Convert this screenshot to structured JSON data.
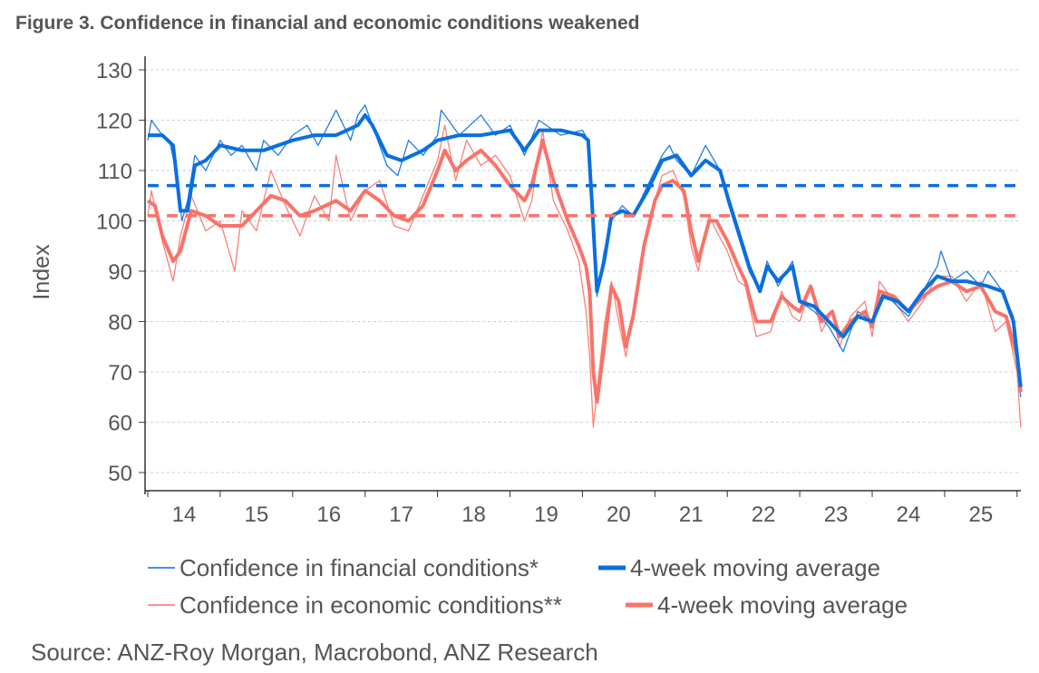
{
  "title": "Figure 3. Confidence in financial and economic conditions weakened",
  "source": "Source: ANZ-Roy Morgan, Macrobond, ANZ Research",
  "colors": {
    "financial": "#0a6fe0",
    "economic": "#f87369"
  },
  "chart_data": {
    "type": "line",
    "title": "Figure 3. Confidence in financial and economic conditions weakened",
    "xlabel": "",
    "ylabel": "Index",
    "ylim": [
      50,
      130
    ],
    "yticks": [
      50,
      60,
      70,
      80,
      90,
      100,
      110,
      120,
      130
    ],
    "xlim": [
      2014.0,
      2026.1
    ],
    "xtick_labels": [
      "14",
      "15",
      "16",
      "17",
      "18",
      "19",
      "20",
      "21",
      "22",
      "23",
      "24",
      "25"
    ],
    "grid": true,
    "legend_placement": "bottom",
    "series": [
      {
        "name": "Confidence in financial conditions*",
        "style": "thin",
        "color": "#0a6fe0",
        "x": [
          2014.0,
          2014.05,
          2014.2,
          2014.3,
          2014.4,
          2014.47,
          2014.55,
          2014.65,
          2014.8,
          2015.0,
          2015.15,
          2015.3,
          2015.5,
          2015.6,
          2015.8,
          2016.0,
          2016.2,
          2016.35,
          2016.6,
          2016.8,
          2016.9,
          2017.0,
          2017.1,
          2017.3,
          2017.45,
          2017.6,
          2017.8,
          2018.0,
          2018.05,
          2018.3,
          2018.6,
          2018.8,
          2019.0,
          2019.2,
          2019.4,
          2019.7,
          2020.0,
          2020.08,
          2020.13,
          2020.2,
          2020.3,
          2020.4,
          2020.55,
          2020.7,
          2020.9,
          2021.1,
          2021.2,
          2021.3,
          2021.5,
          2021.7,
          2021.9,
          2022.0,
          2022.15,
          2022.3,
          2022.45,
          2022.55,
          2022.7,
          2022.9,
          2023.0,
          2023.2,
          2023.4,
          2023.6,
          2023.8,
          2024.0,
          2024.15,
          2024.35,
          2024.5,
          2024.7,
          2024.9,
          2024.95,
          2025.1,
          2025.3,
          2025.5,
          2025.6,
          2025.8,
          2025.95,
          2026.05
        ],
        "y": [
          116,
          120,
          117,
          116,
          109,
          100,
          104,
          113,
          110,
          116,
          113,
          115,
          110,
          116,
          113,
          117,
          119,
          115,
          122,
          116,
          121,
          123,
          119,
          111,
          109,
          116,
          113,
          117,
          122,
          117,
          121,
          117,
          119,
          113,
          120,
          117,
          118,
          116,
          104,
          85,
          94,
          100,
          103,
          101,
          107,
          113,
          115,
          112,
          109,
          115,
          110,
          104,
          97,
          90,
          86,
          92,
          87,
          92,
          84,
          82,
          79,
          74,
          82,
          80,
          86,
          83,
          81,
          86,
          91,
          94,
          88,
          90,
          87,
          90,
          86,
          81,
          65
        ]
      },
      {
        "name": "4-week moving average",
        "style": "thick",
        "color": "#0a6fe0",
        "x": [
          2014.0,
          2014.2,
          2014.35,
          2014.45,
          2014.55,
          2014.65,
          2014.8,
          2015.0,
          2015.3,
          2015.6,
          2016.0,
          2016.3,
          2016.6,
          2016.9,
          2017.0,
          2017.1,
          2017.3,
          2017.5,
          2017.8,
          2018.0,
          2018.3,
          2018.6,
          2019.0,
          2019.2,
          2019.4,
          2019.7,
          2020.0,
          2020.08,
          2020.13,
          2020.2,
          2020.3,
          2020.4,
          2020.55,
          2020.7,
          2020.9,
          2021.1,
          2021.3,
          2021.5,
          2021.7,
          2021.9,
          2022.0,
          2022.15,
          2022.3,
          2022.45,
          2022.55,
          2022.7,
          2022.9,
          2023.0,
          2023.2,
          2023.4,
          2023.6,
          2023.8,
          2024.0,
          2024.15,
          2024.35,
          2024.5,
          2024.7,
          2024.9,
          2025.1,
          2025.3,
          2025.6,
          2025.8,
          2025.95,
          2026.05
        ],
        "y": [
          117,
          117,
          115,
          102,
          102,
          111,
          112,
          115,
          114,
          114,
          116,
          117,
          117,
          119,
          121,
          119,
          113,
          112,
          114,
          116,
          117,
          117,
          118,
          114,
          118,
          118,
          117,
          116,
          104,
          86,
          92,
          101,
          102,
          101,
          106,
          112,
          113,
          109,
          112,
          110,
          105,
          98,
          91,
          86,
          91,
          88,
          91,
          84,
          83,
          80,
          77,
          81,
          80,
          85,
          84,
          82,
          86,
          89,
          88,
          88,
          87,
          86,
          80,
          67
        ]
      },
      {
        "name": "Confidence in economic conditions**",
        "style": "thin",
        "color": "#f87369",
        "x": [
          2014.0,
          2014.05,
          2014.2,
          2014.35,
          2014.45,
          2014.6,
          2014.8,
          2015.0,
          2015.2,
          2015.3,
          2015.5,
          2015.7,
          2015.9,
          2016.1,
          2016.3,
          2016.5,
          2016.6,
          2016.8,
          2017.0,
          2017.2,
          2017.4,
          2017.6,
          2017.8,
          2018.0,
          2018.1,
          2018.25,
          2018.4,
          2018.6,
          2018.8,
          2019.0,
          2019.2,
          2019.3,
          2019.45,
          2019.6,
          2019.8,
          2019.95,
          2020.05,
          2020.1,
          2020.15,
          2020.2,
          2020.3,
          2020.4,
          2020.5,
          2020.6,
          2020.7,
          2020.85,
          2021.0,
          2021.1,
          2021.25,
          2021.4,
          2021.5,
          2021.6,
          2021.75,
          2021.85,
          2022.0,
          2022.15,
          2022.25,
          2022.4,
          2022.6,
          2022.75,
          2022.9,
          2023.0,
          2023.15,
          2023.3,
          2023.45,
          2023.55,
          2023.7,
          2023.9,
          2024.0,
          2024.1,
          2024.3,
          2024.5,
          2024.7,
          2024.9,
          2025.1,
          2025.3,
          2025.5,
          2025.7,
          2025.85,
          2026.0,
          2026.05
        ],
        "y": [
          101,
          106,
          96,
          88,
          97,
          105,
          98,
          100,
          90,
          102,
          98,
          110,
          103,
          97,
          105,
          100,
          113,
          100,
          106,
          108,
          99,
          98,
          105,
          112,
          119,
          108,
          116,
          111,
          113,
          109,
          100,
          104,
          118,
          104,
          98,
          92,
          82,
          73,
          59,
          66,
          79,
          88,
          80,
          73,
          82,
          96,
          104,
          109,
          110,
          105,
          95,
          90,
          101,
          98,
          94,
          88,
          87,
          77,
          78,
          86,
          81,
          80,
          87,
          78,
          82,
          75,
          81,
          84,
          77,
          88,
          84,
          80,
          84,
          89,
          89,
          84,
          88,
          78,
          80,
          70,
          59
        ]
      },
      {
        "name": "4-week moving average",
        "style": "thick",
        "color": "#f87369",
        "x": [
          2014.0,
          2014.1,
          2014.2,
          2014.35,
          2014.45,
          2014.6,
          2014.8,
          2015.0,
          2015.3,
          2015.5,
          2015.7,
          2015.9,
          2016.1,
          2016.3,
          2016.6,
          2016.8,
          2017.0,
          2017.2,
          2017.4,
          2017.6,
          2017.8,
          2018.0,
          2018.1,
          2018.25,
          2018.4,
          2018.6,
          2018.8,
          2019.0,
          2019.2,
          2019.3,
          2019.45,
          2019.6,
          2019.8,
          2019.95,
          2020.05,
          2020.1,
          2020.15,
          2020.2,
          2020.3,
          2020.4,
          2020.5,
          2020.6,
          2020.7,
          2020.85,
          2021.0,
          2021.1,
          2021.25,
          2021.4,
          2021.5,
          2021.6,
          2021.75,
          2021.85,
          2022.0,
          2022.15,
          2022.25,
          2022.4,
          2022.6,
          2022.75,
          2022.9,
          2023.0,
          2023.15,
          2023.3,
          2023.45,
          2023.55,
          2023.7,
          2023.9,
          2024.0,
          2024.1,
          2024.3,
          2024.5,
          2024.7,
          2024.9,
          2025.1,
          2025.3,
          2025.5,
          2025.7,
          2025.85,
          2026.0,
          2026.05
        ],
        "y": [
          104,
          103,
          97,
          92,
          94,
          102,
          101,
          99,
          99,
          102,
          105,
          104,
          101,
          102,
          104,
          102,
          106,
          104,
          101,
          100,
          103,
          110,
          114,
          110,
          112,
          114,
          111,
          107,
          104,
          107,
          116,
          108,
          100,
          95,
          91,
          86,
          70,
          64,
          75,
          87,
          84,
          75,
          81,
          95,
          104,
          107,
          108,
          106,
          98,
          92,
          100,
          100,
          96,
          91,
          88,
          80,
          80,
          85,
          83,
          82,
          87,
          80,
          82,
          77,
          80,
          82,
          79,
          86,
          85,
          82,
          85,
          87,
          88,
          86,
          87,
          82,
          81,
          73,
          66
        ]
      },
      {
        "name": "",
        "style": "dashed",
        "color": "#0a6fe0",
        "x": [
          2014.0,
          2026.05
        ],
        "y": [
          107,
          107
        ]
      },
      {
        "name": "",
        "style": "dashed",
        "color": "#f87369",
        "x": [
          2014.0,
          2026.05
        ],
        "y": [
          101,
          101
        ]
      }
    ]
  },
  "legend": [
    {
      "label": "Confidence in financial conditions*",
      "style": "thin",
      "color": "#0a6fe0"
    },
    {
      "label": "4-week moving average",
      "style": "thick",
      "color": "#0a6fe0"
    },
    {
      "label": "Confidence in economic conditions**",
      "style": "thin",
      "color": "#f87369"
    },
    {
      "label": "4-week moving average",
      "style": "thick",
      "color": "#f87369"
    }
  ]
}
